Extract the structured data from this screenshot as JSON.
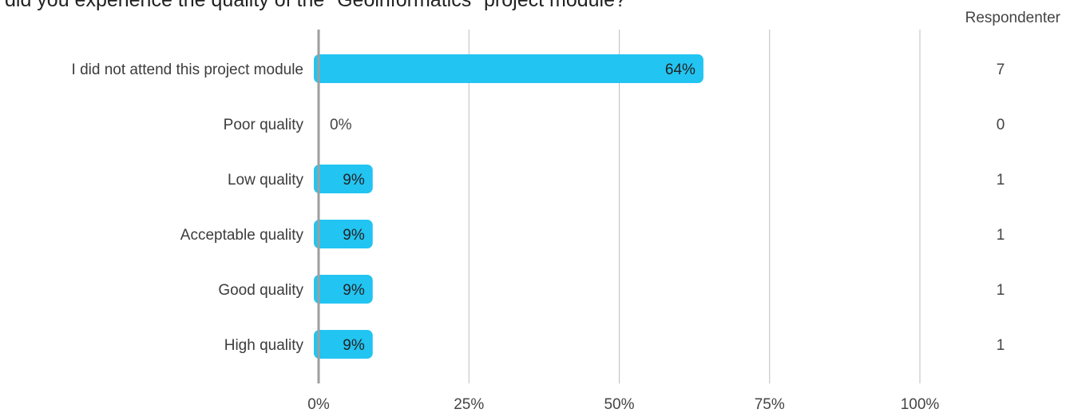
{
  "chart_data": {
    "type": "bar",
    "orientation": "horizontal",
    "title": "did you experience the quality of the \"Geoinformatics\" project module?",
    "count_header": "Respondenter",
    "categories": [
      "I did not attend this project module",
      "Poor quality",
      "Low quality",
      "Acceptable quality",
      "Good quality",
      "High quality"
    ],
    "values": [
      64,
      0,
      9,
      9,
      9,
      9
    ],
    "value_labels": [
      "64%",
      "0%",
      "9%",
      "9%",
      "9%",
      "9%"
    ],
    "counts": [
      "7",
      "0",
      "1",
      "1",
      "1",
      "1"
    ],
    "xlim": [
      0,
      100
    ],
    "x_ticks": [
      0,
      25,
      50,
      75,
      100
    ],
    "x_tick_labels": [
      "0%",
      "25%",
      "50%",
      "75%",
      "100%"
    ],
    "grid": true,
    "bar_color": "#22c4f2"
  }
}
